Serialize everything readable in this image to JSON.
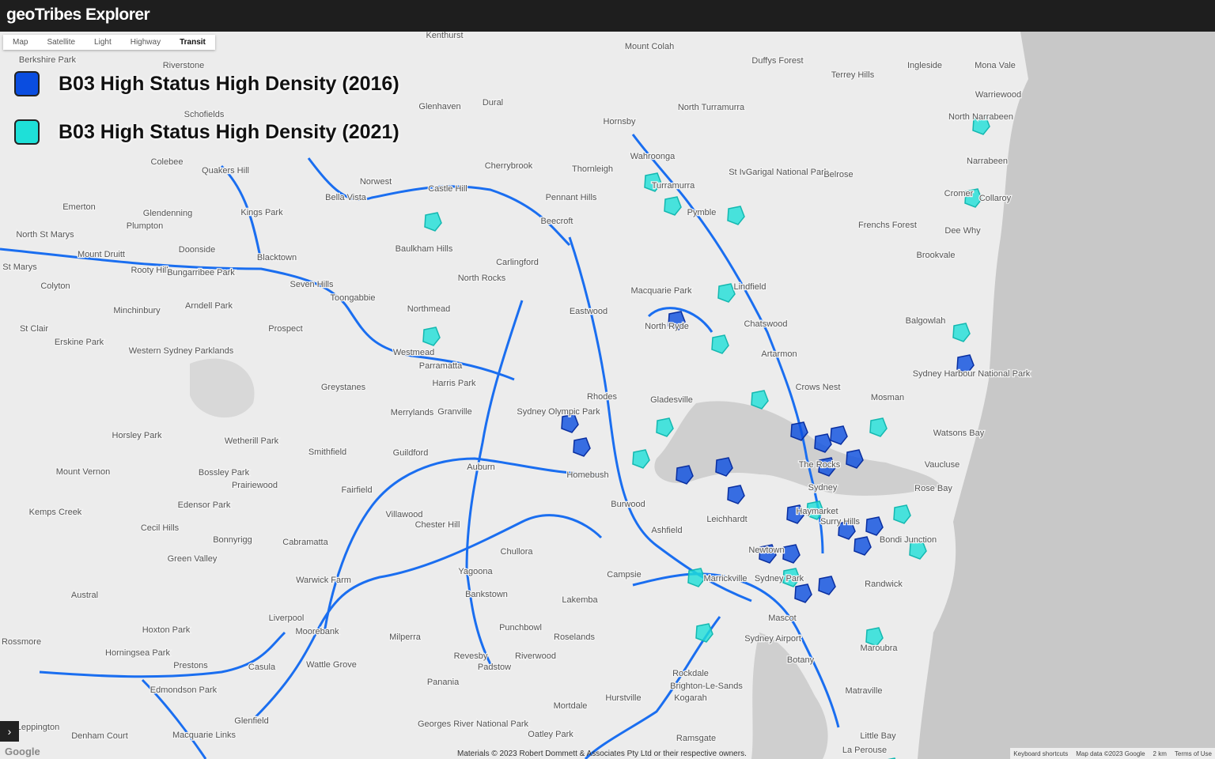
{
  "header": {
    "title": "geoTribes Explorer"
  },
  "map_types": [
    "Map",
    "Satellite",
    "Light",
    "Highway",
    "Transit"
  ],
  "legend": {
    "items": [
      {
        "label": "B03 High Status High Density (2016)",
        "color": "#0a4de0"
      },
      {
        "label": "B03 High Status High Density (2021)",
        "color": "#1ee0d8"
      }
    ]
  },
  "places": [
    "Kenthurst",
    "Mount Colah",
    "Duffys Forest",
    "Ingleside",
    "Mona Vale",
    "Berkshire Park",
    "Riverstone",
    "Terrey Hills",
    "Glenhaven",
    "Dural",
    "North Turramurra",
    "Warriewood",
    "Schofields",
    "Hornsby",
    "North Narrabeen",
    "Colebee",
    "Quakers Hill",
    "Cherrybrook",
    "Thornleigh",
    "Wahroonga",
    "Narrabeen",
    "Norwest",
    "Castle Hill",
    "St Ives",
    "Garigal National Park",
    "Belrose",
    "Turramurra",
    "Cromer",
    "Collaroy",
    "Bella Vista",
    "Pennant Hills",
    "Emerton",
    "Glendenning",
    "Kings Park",
    "Plumpton",
    "Pymble",
    "Beecroft",
    "Frenchs Forest",
    "Dee Why",
    "North St Marys",
    "Doonside",
    "Baulkham Hills",
    "Mount Druitt",
    "Blacktown",
    "Carlingford",
    "Brookvale",
    "St Marys",
    "Rooty Hill",
    "Bungarribee Park",
    "North Rocks",
    "Colyton",
    "Seven Hills",
    "Lindfield",
    "Macquarie Park",
    "Toongabbie",
    "Minchinbury",
    "Arndell Park",
    "Northmead",
    "Eastwood",
    "Chatswood",
    "Balgowlah",
    "North Ryde",
    "St Clair",
    "Prospect",
    "Erskine Park",
    "Western Sydney Parklands",
    "Westmead",
    "Artarmon",
    "Parramatta",
    "Sydney Harbour National Park",
    "Harris Park",
    "Greystanes",
    "Crows Nest",
    "Mosman",
    "Rhodes",
    "Gladesville",
    "Merrylands",
    "Granville",
    "Sydney Olympic Park",
    "Horsley Park",
    "Wetherill Park",
    "Watsons Bay",
    "Smithfield",
    "Guildford",
    "Auburn",
    "Mount Vernon",
    "Bossley Park",
    "Prairiewood",
    "Vaucluse",
    "The Rocks",
    "Homebush",
    "Fairfield",
    "Sydney",
    "Rose Bay",
    "Edensor Park",
    "Burwood",
    "Kemps Creek",
    "Villawood",
    "Chester Hill",
    "Haymarket",
    "Surry Hills",
    "Leichhardt",
    "Cecil Hills",
    "Ashfield",
    "Bonnyrigg",
    "Cabramatta",
    "Bondi Junction",
    "Chullora",
    "Newtown",
    "Green Valley",
    "Yagoona",
    "Campsie",
    "Marrickville",
    "Sydney Park",
    "Warwick Farm",
    "Randwick",
    "Bankstown",
    "Austral",
    "Lakemba",
    "Liverpool",
    "Mascot",
    "Punchbowl",
    "Hoxton Park",
    "Moorebank",
    "Roselands",
    "Milperra",
    "Rossmore",
    "Sydney Airport",
    "Horningsea Park",
    "Maroubra",
    "Revesby",
    "Riverwood",
    "Botany",
    "Prestons",
    "Casula",
    "Wattle Grove",
    "Padstow",
    "Edmondson Park",
    "Rockdale",
    "Panania",
    "Brighton-Le-Sands",
    "Matraville",
    "Hurstville",
    "Kogarah",
    "Mortdale",
    "Glenfield",
    "Georges River National Park",
    "Leppington",
    "Denham Court",
    "Macquarie Links",
    "Oatley Park",
    "Ramsgate",
    "Little Bay",
    "La Perouse"
  ],
  "footer": {
    "attribution": "Materials © 2023 Robert Dommett & Associates Pty Ltd or their respective owners.",
    "shortcuts": "Keyboard shortcuts",
    "map_data": "Map data ©2023 Google",
    "scale": "2 km",
    "terms": "Terms of Use",
    "logo": "Google"
  }
}
